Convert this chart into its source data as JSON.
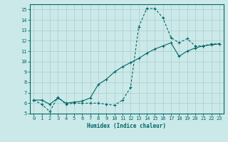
{
  "xlabel": "Humidex (Indice chaleur)",
  "xlim": [
    -0.5,
    23.5
  ],
  "ylim": [
    5,
    15.5
  ],
  "yticks": [
    5,
    6,
    7,
    8,
    9,
    10,
    11,
    12,
    13,
    14,
    15
  ],
  "xticks": [
    0,
    1,
    2,
    3,
    4,
    5,
    6,
    7,
    8,
    9,
    10,
    11,
    12,
    13,
    14,
    15,
    16,
    17,
    18,
    19,
    20,
    21,
    22,
    23
  ],
  "bg_color": "#cce9e9",
  "line_color": "#006666",
  "grid_color": "#aacccc",
  "curve1_x": [
    0,
    1,
    2,
    3,
    4,
    5,
    6,
    7,
    8,
    9,
    10,
    11,
    12,
    13,
    14,
    15,
    16,
    17,
    18,
    19,
    20,
    21,
    22,
    23
  ],
  "curve1_y": [
    6.3,
    5.9,
    5.2,
    6.6,
    5.9,
    6.0,
    6.0,
    6.0,
    6.0,
    5.9,
    5.8,
    6.3,
    7.5,
    13.3,
    15.1,
    15.1,
    14.2,
    12.3,
    11.8,
    12.2,
    11.5,
    11.5,
    11.7,
    11.7
  ],
  "curve2_x": [
    0,
    1,
    2,
    3,
    4,
    5,
    6,
    7,
    8,
    9,
    10,
    11,
    12,
    13,
    14,
    15,
    16,
    17,
    18,
    19,
    20,
    21,
    22,
    23
  ],
  "curve2_y": [
    6.3,
    6.3,
    5.9,
    6.5,
    6.0,
    6.1,
    6.2,
    6.5,
    7.8,
    8.3,
    9.0,
    9.5,
    9.9,
    10.3,
    10.8,
    11.2,
    11.5,
    11.8,
    10.5,
    11.0,
    11.3,
    11.5,
    11.6,
    11.7
  ]
}
